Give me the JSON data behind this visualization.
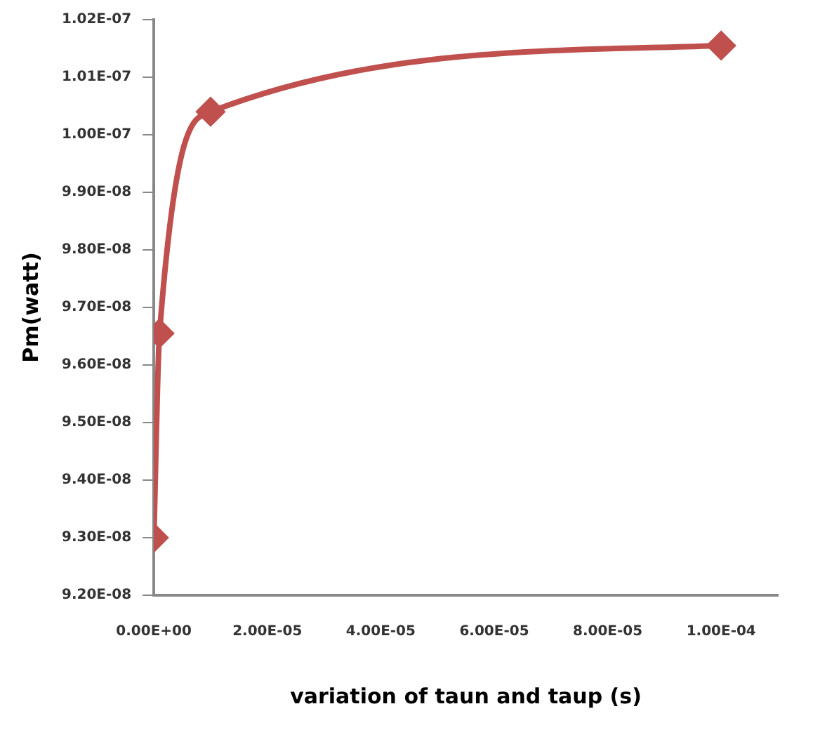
{
  "chart_data": {
    "type": "line",
    "xlabel": "variation of taun and taup (s)",
    "ylabel": "Pm(watt)",
    "x": [
      0,
      1e-06,
      1e-05,
      0.0001
    ],
    "series": [
      {
        "color": "#c0504d",
        "values": [
          9.3e-08,
          9.655e-08,
          1.004e-07,
          1.0155e-07
        ]
      }
    ],
    "xlim": [
      0,
      0.00011
    ],
    "xticks": [
      {
        "value": 0,
        "label": "0.00E+00"
      },
      {
        "value": 2e-05,
        "label": "2.00E-05"
      },
      {
        "value": 4e-05,
        "label": "4.00E-05"
      },
      {
        "value": 6e-05,
        "label": "6.00E-05"
      },
      {
        "value": 8e-05,
        "label": "8.00E-05"
      },
      {
        "value": 0.0001,
        "label": "1.00E-04"
      }
    ],
    "ylim": [
      9.2e-08,
      1.02e-07
    ],
    "yticks": [
      {
        "value": 9.2e-08,
        "label": "9.20E-08"
      },
      {
        "value": 9.3e-08,
        "label": "9.30E-08"
      },
      {
        "value": 9.4e-08,
        "label": "9.40E-08"
      },
      {
        "value": 9.5e-08,
        "label": "9.50E-08"
      },
      {
        "value": 9.6e-08,
        "label": "9.60E-08"
      },
      {
        "value": 9.7e-08,
        "label": "9.70E-08"
      },
      {
        "value": 9.8e-08,
        "label": "9.80E-08"
      },
      {
        "value": 9.9e-08,
        "label": "9.90E-08"
      },
      {
        "value": 1e-07,
        "label": "1.00E-07"
      },
      {
        "value": 1.01e-07,
        "label": "1.01E-07"
      },
      {
        "value": 1.02e-07,
        "label": "1.02E-07"
      }
    ],
    "grid": false,
    "legend": false,
    "marker": "diamond",
    "line_style": "solid"
  }
}
